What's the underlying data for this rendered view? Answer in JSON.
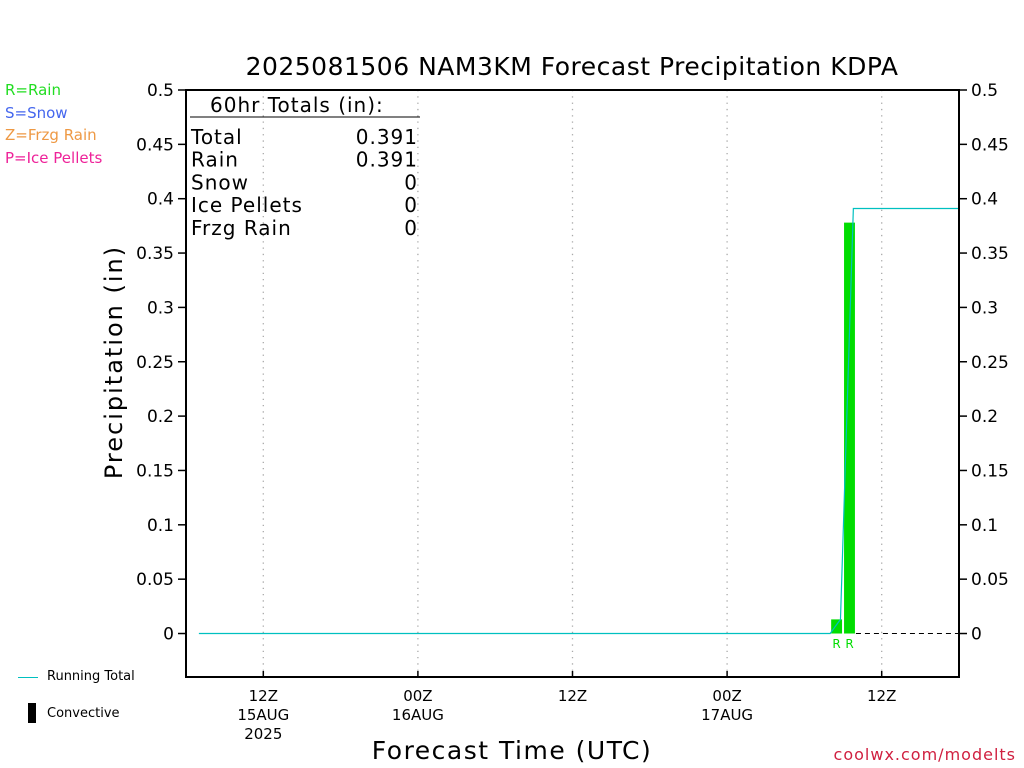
{
  "chart_data": {
    "type": "bar",
    "title": "2025081506 NAM3KM Forecast Precipitation KDPA",
    "xlabel": "Forecast Time (UTC)",
    "ylabel": "Precipitation (in)",
    "ylim": [
      -0.04,
      0.5
    ],
    "y_ticks": [
      "0.5",
      "0.45",
      "0.4",
      "0.35",
      "0.3",
      "0.25",
      "0.2",
      "0.15",
      "0.1",
      "0.05",
      "0"
    ],
    "x_units": "forecast hours from 2025-08-15 06Z",
    "xlim": [
      0,
      60
    ],
    "x_ticks": [
      {
        "hour": 6,
        "label": "12Z",
        "sub1": "15AUG",
        "sub2": "2025"
      },
      {
        "hour": 18,
        "label": "00Z",
        "sub1": "16AUG",
        "sub2": ""
      },
      {
        "hour": 30,
        "label": "12Z",
        "sub1": "",
        "sub2": ""
      },
      {
        "hour": 42,
        "label": "00Z",
        "sub1": "17AUG",
        "sub2": ""
      },
      {
        "hour": 54,
        "label": "12Z",
        "sub1": "",
        "sub2": ""
      }
    ],
    "grid": "vertical dotted at tick hours",
    "rain_bars": [
      {
        "hour": 50.5,
        "value": 0.013,
        "ptype": "R"
      },
      {
        "hour": 51.5,
        "value": 0.378,
        "ptype": "R"
      }
    ],
    "running_total": [
      [
        1,
        0
      ],
      [
        50,
        0
      ],
      [
        50.8,
        0.013
      ],
      [
        51.8,
        0.391
      ],
      [
        60,
        0.391
      ]
    ],
    "colors": {
      "rain": "#00dd00",
      "running_total": "#00c0c0",
      "convective": "#000000"
    }
  },
  "totals": {
    "header": "60hr Totals (in):",
    "rows": [
      {
        "label": "Total",
        "value": "0.391"
      },
      {
        "label": "Rain",
        "value": "0.391"
      },
      {
        "label": "Snow",
        "value": "0"
      },
      {
        "label": "Ice Pellets",
        "value": "0"
      },
      {
        "label": "Frzg Rain",
        "value": "0"
      }
    ]
  },
  "ptype_key": [
    {
      "text": "R=Rain",
      "color": "#22dd22"
    },
    {
      "text": "S=Snow",
      "color": "#4466ee"
    },
    {
      "text": "Z=Frzg Rain",
      "color": "#ee9944"
    },
    {
      "text": "P=Ice Pellets",
      "color": "#ee2299"
    }
  ],
  "legend": {
    "running_total": "Running Total",
    "convective": "Convective"
  },
  "credit": "coolwx.com/modelts"
}
